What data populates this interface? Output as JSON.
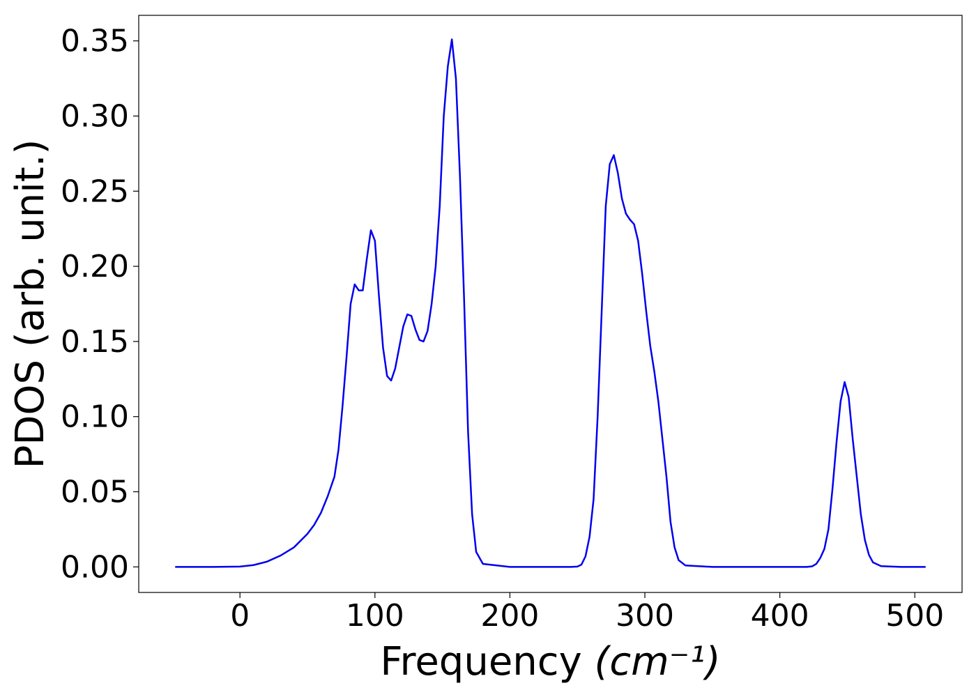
{
  "chart_data": {
    "type": "line",
    "title": "",
    "xlabel": "Frequency",
    "xlabel_unit": "(cm⁻¹)",
    "ylabel": "PDOS (arb. unit.)",
    "xlim": [
      -75,
      535
    ],
    "ylim": [
      -0.017,
      0.367
    ],
    "xticks": [
      0,
      100,
      200,
      300,
      400,
      500
    ],
    "xtick_labels": [
      "0",
      "100",
      "200",
      "300",
      "400",
      "500"
    ],
    "yticks": [
      0.0,
      0.05,
      0.1,
      0.15,
      0.2,
      0.25,
      0.3,
      0.35
    ],
    "ytick_labels": [
      "0.00",
      "0.05",
      "0.10",
      "0.15",
      "0.20",
      "0.25",
      "0.30",
      "0.35"
    ],
    "grid": false,
    "legend": "none",
    "series": [
      {
        "color": "#0000ee",
        "x": [
          -48,
          -20,
          0,
          10,
          20,
          30,
          40,
          50,
          55,
          60,
          65,
          70,
          73,
          76,
          79,
          82,
          85,
          88,
          91,
          94,
          97,
          100,
          103,
          106,
          109,
          112,
          115,
          118,
          121,
          124,
          127,
          130,
          133,
          136,
          139,
          142,
          145,
          148,
          151,
          154,
          157,
          160,
          163,
          166,
          169,
          172,
          175,
          180,
          200,
          230,
          245,
          250,
          253,
          256,
          259,
          262,
          265,
          268,
          271,
          274,
          277,
          280,
          283,
          286,
          289,
          292,
          295,
          298,
          301,
          304,
          307,
          310,
          313,
          316,
          319,
          322,
          325,
          330,
          350,
          400,
          420,
          424,
          427,
          430,
          433,
          436,
          439,
          442,
          445,
          448,
          451,
          454,
          457,
          460,
          463,
          466,
          469,
          475,
          490,
          508
        ],
        "y": [
          0.0,
          0.0,
          0.0002,
          0.0012,
          0.0035,
          0.0075,
          0.013,
          0.022,
          0.028,
          0.036,
          0.047,
          0.06,
          0.078,
          0.107,
          0.14,
          0.175,
          0.188,
          0.184,
          0.184,
          0.205,
          0.224,
          0.217,
          0.18,
          0.146,
          0.127,
          0.124,
          0.132,
          0.146,
          0.16,
          0.168,
          0.167,
          0.158,
          0.151,
          0.15,
          0.157,
          0.175,
          0.2,
          0.24,
          0.3,
          0.333,
          0.351,
          0.325,
          0.26,
          0.18,
          0.09,
          0.035,
          0.01,
          0.002,
          0.0,
          0.0,
          0.0,
          0.0002,
          0.0015,
          0.007,
          0.02,
          0.045,
          0.1,
          0.17,
          0.24,
          0.268,
          0.274,
          0.262,
          0.245,
          0.235,
          0.231,
          0.228,
          0.217,
          0.195,
          0.17,
          0.147,
          0.13,
          0.11,
          0.085,
          0.06,
          0.03,
          0.013,
          0.0045,
          0.001,
          0.0,
          0.0,
          0.0,
          0.0004,
          0.002,
          0.006,
          0.012,
          0.025,
          0.052,
          0.083,
          0.11,
          0.123,
          0.113,
          0.085,
          0.06,
          0.035,
          0.018,
          0.008,
          0.003,
          0.0005,
          0.0,
          0.0
        ]
      }
    ]
  }
}
